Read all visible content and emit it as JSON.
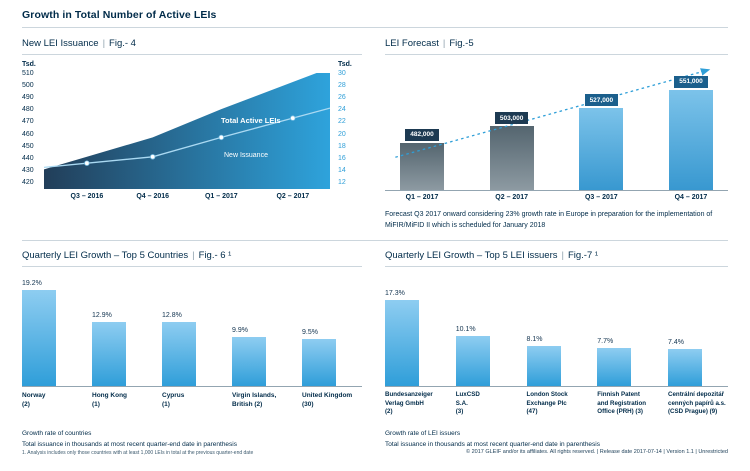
{
  "page": {
    "title": "Growth in Total Number of Active LEIs",
    "footer": "© 2017 GLEIF and/or its affiliates. All rights reserved.  |  Release date 2017-07-14  |  Version 1.1  |  Unrestricted"
  },
  "ui": {
    "pipe": "|"
  },
  "colors": {
    "navy": "#002b49",
    "accent_blue": "#2f9fd8",
    "bar_gradient_top": "#8ecdf1",
    "bar_gradient_bottom": "#2f9ed9",
    "actual_bar_gray": "#6d7d88",
    "area_gradient_left": "#223e59",
    "area_gradient_right": "#2ea3dc",
    "chip_actual": "#1d3a52",
    "chip_forecast": "#1b5f8c",
    "rule_gray": "#ccd6dd"
  },
  "panels": {
    "fig4": {
      "title": "New LEI Issuance",
      "fig": "Fig.- 4",
      "left_axis_title": "Tsd.",
      "right_axis_title": "Tsd."
    },
    "fig5": {
      "title": "LEI Forecast",
      "fig": "Fig.-5",
      "note": "Forecast Q3 2017 onward considering 23% growth rate in Europe in preparation for the implementation of MiFIR/MiFID II which is scheduled for January 2018"
    },
    "fig6": {
      "title": "Quarterly LEI Growth – Top 5 Countries",
      "fig": "Fig.- 6 ¹",
      "caption1": "Growth rate of countries",
      "caption2": "Total issuance in thousands at most recent quarter-end date in parenthesis",
      "footnote": "1. Analysis includes only those countries with at least 1,000 LEIs in total at the previous quarter-end date"
    },
    "fig7": {
      "title": "Quarterly LEI Growth – Top 5 LEI issuers",
      "fig": "Fig.-7 ¹",
      "caption1": "Growth rate of LEI issuers",
      "caption2": "Total issuance in thousands at most recent quarter-end date in parenthesis"
    }
  },
  "chart_data": [
    {
      "id": "fig4",
      "type": "area",
      "title": "New LEI Issuance",
      "categories": [
        "Q3 – 2016",
        "Q4 – 2016",
        "Q1 – 2017",
        "Q2 – 2017"
      ],
      "left_axis": {
        "title": "Tsd.",
        "min": 420,
        "max": 510,
        "ticks": [
          510,
          500,
          490,
          480,
          470,
          460,
          450,
          440,
          430,
          420
        ]
      },
      "right_axis": {
        "title": "Tsd.",
        "min": 12,
        "max": 30,
        "ticks": [
          30,
          28,
          26,
          24,
          22,
          20,
          18,
          16,
          14,
          12
        ]
      },
      "series": [
        {
          "name": "Total Active LEIs",
          "type": "area",
          "axis": "left",
          "values": [
            445,
            460,
            482,
            503
          ]
        },
        {
          "name": "New Issuance",
          "type": "line",
          "axis": "right",
          "values": [
            16,
            17,
            20,
            23
          ]
        }
      ],
      "legend_position": "inside"
    },
    {
      "id": "fig5",
      "type": "bar",
      "title": "LEI Forecast",
      "categories": [
        "Q1 – 2017",
        "Q2 – 2017",
        "Q3 – 2017",
        "Q4 – 2017"
      ],
      "values": [
        482000,
        503000,
        527000,
        551000
      ],
      "labels": [
        "482,000",
        "503,000",
        "527,000",
        "551,000"
      ],
      "forecast": [
        false,
        false,
        true,
        true
      ],
      "ylim": [
        420000,
        570000
      ],
      "trendline": "dotted-upward-arrow"
    },
    {
      "id": "fig6",
      "type": "bar",
      "title": "Quarterly LEI Growth – Top 5 Countries",
      "categories": [
        "Norway (2)",
        "Hong Kong (1)",
        "Cyprus (1)",
        "Virgin Islands, British (2)",
        "United Kingdom (30)"
      ],
      "label_lines": [
        [
          "Norway",
          "(2)"
        ],
        [
          "Hong Kong",
          "(1)"
        ],
        [
          "Cyprus",
          "(1)"
        ],
        [
          "Virgin Islands,",
          "British (2)"
        ],
        [
          "United Kingdom",
          "(30)"
        ]
      ],
      "values": [
        19.2,
        12.9,
        12.8,
        9.9,
        9.5
      ],
      "labels": [
        "19.2%",
        "12.9%",
        "12.8%",
        "9.9%",
        "9.5%"
      ],
      "ylim": [
        0,
        20
      ]
    },
    {
      "id": "fig7",
      "type": "bar",
      "title": "Quarterly LEI Growth – Top 5 LEI issuers",
      "categories": [
        "Bundesanzeiger Verlag GmbH (2)",
        "LuxCSD S.A. (3)",
        "London Stock Exchange Plc (47)",
        "Finnish Patent and Registration Office (PRH) (3)",
        "Centrální depozitář cenných papírů a.s. (CSD Prague) (9)"
      ],
      "label_lines": [
        [
          "Bundesanzeiger",
          "Verlag GmbH",
          "(2)"
        ],
        [
          "LuxCSD",
          "S.A.",
          "(3)"
        ],
        [
          "London Stock",
          "Exchange Plc",
          "(47)"
        ],
        [
          "Finnish Patent",
          "and Registration",
          "Office (PRH) (3)"
        ],
        [
          "Centrální depozitář",
          "cenných papírů a.s.",
          "(CSD Prague) (9)"
        ]
      ],
      "values": [
        17.3,
        10.1,
        8.1,
        7.7,
        7.4
      ],
      "labels": [
        "17.3%",
        "10.1%",
        "8.1%",
        "7.7%",
        "7.4%"
      ],
      "ylim": [
        0,
        20
      ]
    }
  ]
}
